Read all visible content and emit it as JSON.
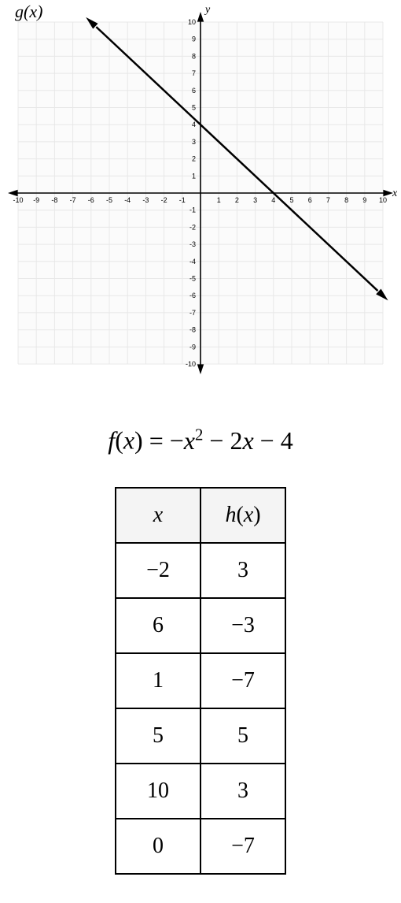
{
  "graph": {
    "function_label": "g(x)",
    "x_axis_label": "x",
    "y_axis_label": "y",
    "xlim": [
      -10,
      10
    ],
    "ylim": [
      -10,
      10
    ],
    "xtick_step": 1,
    "ytick_step": 1,
    "grid_color": "#e8e8e8",
    "plot_bg": "#fbfbfb",
    "axis_color": "#000000",
    "line_color": "#000000",
    "line_width": 2.5,
    "line": {
      "slope": -1,
      "intercept": 4
    },
    "tick_fontsize": 9
  },
  "equation": {
    "lhs_fn": "f",
    "lhs_var": "x",
    "rhs": "= −x² − 2x − 4"
  },
  "table": {
    "col_x_header": "x",
    "col_h_header_fn": "h",
    "col_h_header_var": "x",
    "rows": [
      {
        "x": "−2",
        "h": "3"
      },
      {
        "x": "6",
        "h": "−3"
      },
      {
        "x": "1",
        "h": "−7"
      },
      {
        "x": "5",
        "h": "5"
      },
      {
        "x": "10",
        "h": "3"
      },
      {
        "x": "0",
        "h": "−7"
      }
    ]
  }
}
